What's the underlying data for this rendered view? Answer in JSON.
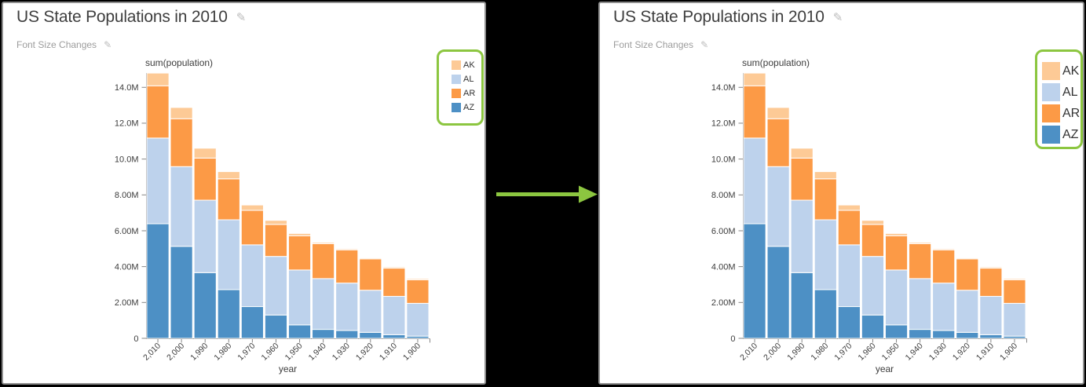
{
  "app": {
    "background": "#000000",
    "panel_border": "#8f8f8f",
    "accent_green": "#8cc640",
    "axis_color": "#878787",
    "label_color": "#3c3c3c"
  },
  "icons": {
    "edit": "✎"
  },
  "panels": {
    "before": {
      "title": "US State Populations in 2010",
      "subtitle": "Font Size Changes",
      "legend_size": "small"
    },
    "after": {
      "title": "US State Populations in 2010",
      "subtitle": "Font Size Changes",
      "legend_size": "large"
    }
  },
  "chart_data": {
    "type": "bar",
    "stacked": true,
    "title": "",
    "xlabel": "year",
    "ylabel": "sum(population)",
    "unit": "millions",
    "grid": false,
    "legend_position": "top-right",
    "categories": [
      2010,
      2000,
      1990,
      1980,
      1970,
      1960,
      1950,
      1940,
      1930,
      1920,
      1910,
      1900
    ],
    "x_tick_labels": [
      "2,010",
      "2,000",
      "1,990",
      "1,980",
      "1,970",
      "1,960",
      "1,950",
      "1,940",
      "1,930",
      "1,920",
      "1,910",
      "1,900"
    ],
    "series": [
      {
        "name": "AZ",
        "color": "#4d90c5",
        "values": [
          6.392,
          5.131,
          3.665,
          2.718,
          1.771,
          1.302,
          0.75,
          0.499,
          0.436,
          0.334,
          0.204,
          0.123
        ]
      },
      {
        "name": "AL",
        "color": "#bdd2ec",
        "values": [
          4.78,
          4.447,
          4.04,
          3.894,
          3.444,
          3.267,
          3.062,
          2.833,
          2.646,
          2.348,
          2.138,
          1.829
        ]
      },
      {
        "name": "AR",
        "color": "#fc9a46",
        "values": [
          2.916,
          2.673,
          2.351,
          2.286,
          1.923,
          1.786,
          1.91,
          1.949,
          1.854,
          1.752,
          1.574,
          1.312
        ]
      },
      {
        "name": "AK",
        "color": "#fdca96",
        "values": [
          0.71,
          0.627,
          0.55,
          0.402,
          0.3,
          0.226,
          0.129,
          0.072,
          0.059,
          0.055,
          0.064,
          0.064
        ]
      }
    ],
    "stack_order_bottom_to_top": [
      "AZ",
      "AL",
      "AR",
      "AK"
    ],
    "legend_order": [
      "AK",
      "AL",
      "AR",
      "AZ"
    ],
    "ylim": [
      0,
      14.8
    ],
    "y_ticks": [
      {
        "value": 0,
        "label": "0"
      },
      {
        "value": 2,
        "label": "2.00M"
      },
      {
        "value": 4,
        "label": "4.00M"
      },
      {
        "value": 6,
        "label": "6.00M"
      },
      {
        "value": 8,
        "label": "8.00M"
      },
      {
        "value": 10,
        "label": "10.0M"
      },
      {
        "value": 12,
        "label": "12.0M"
      },
      {
        "value": 14,
        "label": "14.0M"
      }
    ]
  }
}
